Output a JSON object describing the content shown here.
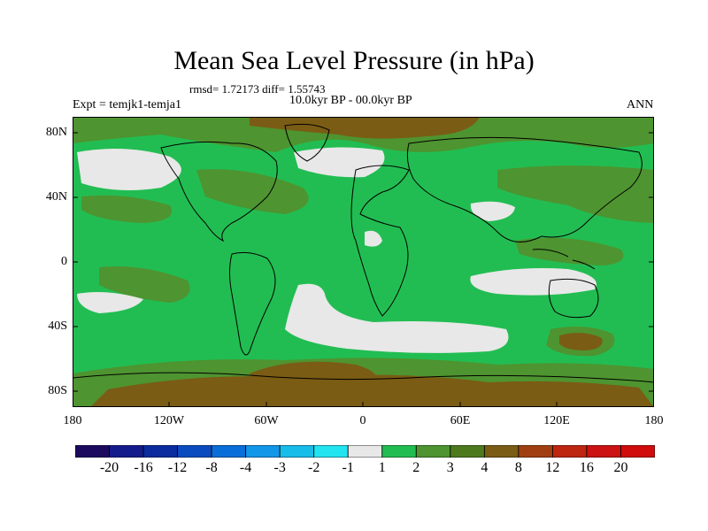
{
  "title": "Mean Sea Level Pressure (in hPa)",
  "stats": "rmsd= 1.72173  diff= 1.55743",
  "period": "10.0kyr BP - 00.0kyr BP",
  "experiment": "Expt = temjk1-temja1",
  "season": "ANN",
  "lat_labels": [
    "80N",
    "40N",
    "0",
    "40S",
    "80S"
  ],
  "lon_labels": [
    "180",
    "120W",
    "60W",
    "0",
    "60E",
    "120E",
    "180"
  ],
  "colorbar": {
    "labels": [
      "-20",
      "-16",
      "-12",
      "-8",
      "-4",
      "-3",
      "-2",
      "-1",
      "1",
      "2",
      "3",
      "4",
      "8",
      "12",
      "16",
      "20"
    ],
    "colors": [
      "#1c0a5e",
      "#141c8c",
      "#0a2c9e",
      "#0a4cc0",
      "#0a6ed8",
      "#1296e8",
      "#18bce8",
      "#22e4f0",
      "#e8e8e8",
      "#22bd52",
      "#4e9430",
      "#4e7a1e",
      "#7a5c14",
      "#a04012",
      "#be2610",
      "#cc1212",
      "#d00c0c"
    ]
  },
  "field_colors": {
    "neutral": "#e8e8e8",
    "level2": "#22bd52",
    "level3": "#4e9430",
    "level4": "#4e7a1e",
    "level8": "#7a5c14",
    "ocean_bg": "#22bd52"
  }
}
